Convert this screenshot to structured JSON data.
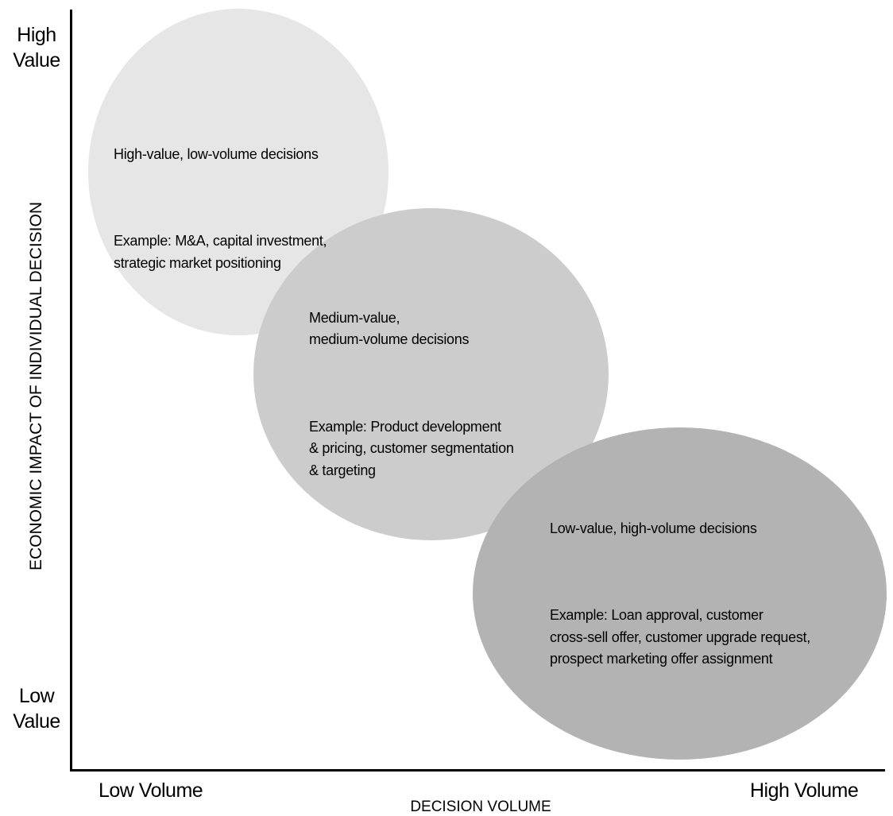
{
  "axes": {
    "y_title": "ECONOMIC IMPACT OF INDIVIDUAL DECISION",
    "x_title": "DECISION VOLUME",
    "y_high": "High\nValue",
    "y_low": "Low\nValue",
    "x_low": "Low Volume",
    "x_high": "High Volume"
  },
  "groups": [
    {
      "title": "High-value, low-volume decisions",
      "example": "Example: M&A, capital investment,\nstrategic market positioning",
      "fill": "#e6e6e6"
    },
    {
      "title": "Medium-value,\nmedium-volume decisions",
      "example": "Example: Product development\n& pricing, customer segmentation\n& targeting",
      "fill": "#cccccc"
    },
    {
      "title": "Low-value, high-volume decisions",
      "example": "Example: Loan approval, customer\ncross-sell offer, customer upgrade request,\nprospect marketing offer assignment",
      "fill": "#b3b3b3"
    }
  ]
}
